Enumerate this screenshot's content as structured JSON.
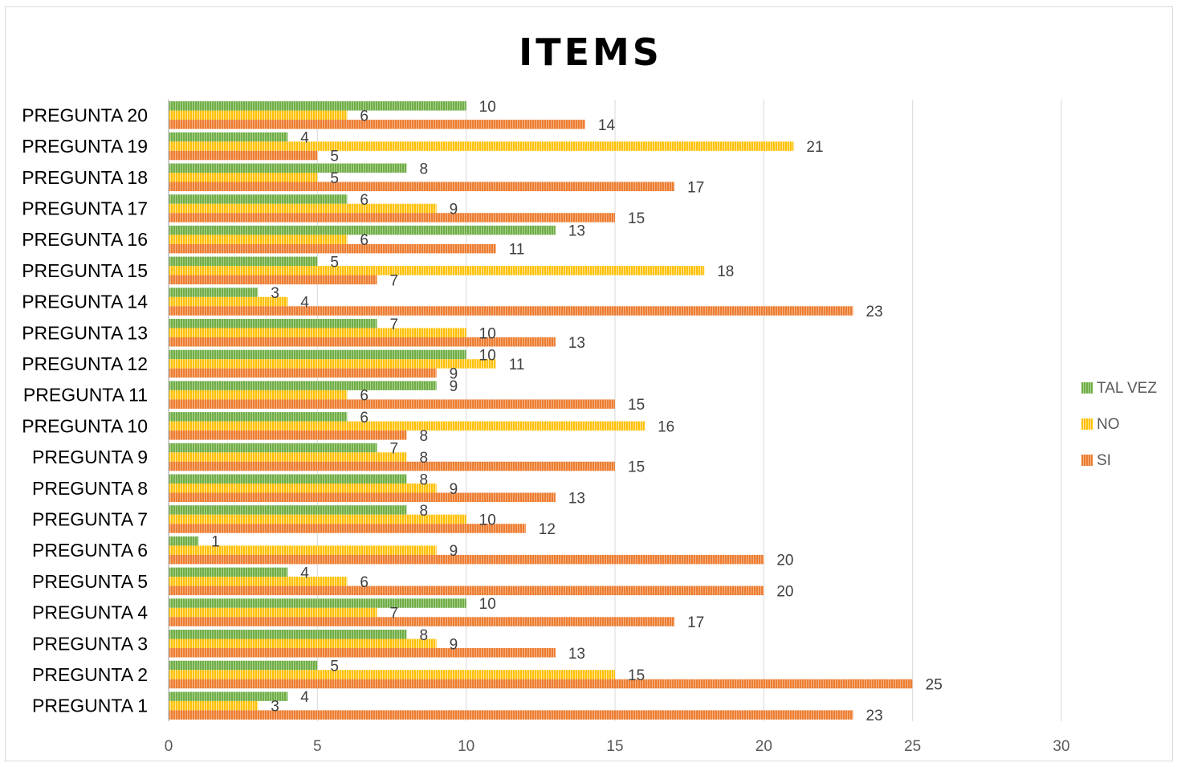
{
  "chart_data": {
    "type": "bar",
    "orientation": "horizontal",
    "title": "ITEMS",
    "categories": [
      "PREGUNTA 1",
      "PREGUNTA 2",
      "PREGUNTA 3",
      "PREGUNTA 4",
      "PREGUNTA 5",
      "PREGUNTA 6",
      "PREGUNTA 7",
      "PREGUNTA 8",
      "PREGUNTA 9",
      "PREGUNTA 10",
      "PREGUNTA 11",
      "PREGUNTA 12",
      "PREGUNTA 13",
      "PREGUNTA 14",
      "PREGUNTA 15",
      "PREGUNTA 16",
      "PREGUNTA 17",
      "PREGUNTA 18",
      "PREGUNTA 19",
      "PREGUNTA 20"
    ],
    "series": [
      {
        "name": "SI",
        "color": "#ed7d31",
        "values": [
          23,
          25,
          13,
          17,
          20,
          20,
          12,
          13,
          15,
          8,
          15,
          9,
          13,
          23,
          7,
          11,
          15,
          17,
          5,
          14
        ]
      },
      {
        "name": "NO",
        "color": "#ffc000",
        "values": [
          3,
          15,
          9,
          7,
          6,
          9,
          10,
          9,
          8,
          16,
          6,
          11,
          10,
          4,
          18,
          6,
          9,
          5,
          21,
          6
        ]
      },
      {
        "name": "TAL VEZ",
        "color": "#70ad47",
        "values": [
          4,
          5,
          8,
          10,
          4,
          1,
          8,
          8,
          7,
          6,
          9,
          10,
          7,
          3,
          5,
          13,
          6,
          8,
          4,
          10
        ]
      }
    ],
    "xlim": [
      0,
      30
    ],
    "xticks": [
      0,
      5,
      10,
      15,
      20,
      25,
      30
    ],
    "grid": true,
    "legend_position": "right",
    "data_labels": true
  }
}
